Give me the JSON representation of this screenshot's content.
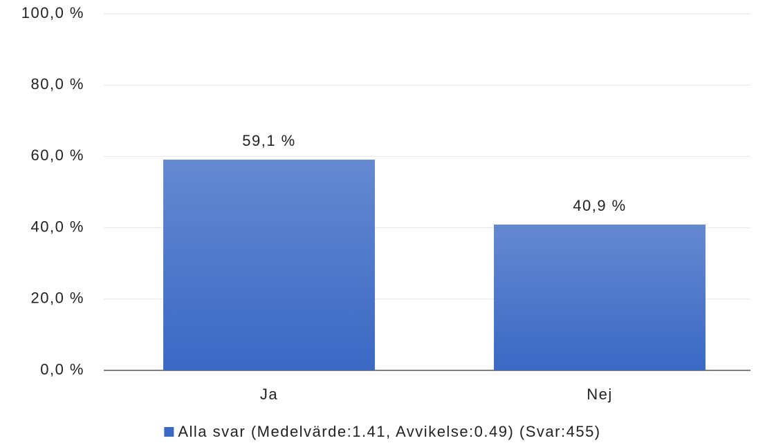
{
  "chart_data": {
    "type": "bar",
    "categories": [
      "Ja",
      "Nej"
    ],
    "series": [
      {
        "name": "Alla svar (Medelvärde:1.41, Avvikelse:0.49) (Svar:455)",
        "color": "#3a68c4",
        "values": [
          59.1,
          40.9
        ],
        "value_labels": [
          "59,1 %",
          "40,9 %"
        ]
      }
    ],
    "ylim": [
      0,
      100
    ],
    "yticks": [
      {
        "value": 0,
        "label": "0,0 %"
      },
      {
        "value": 20,
        "label": "20,0 %"
      },
      {
        "value": 40,
        "label": "40,0 %"
      },
      {
        "value": 60,
        "label": "60,0 %"
      },
      {
        "value": 80,
        "label": "80,0 %"
      },
      {
        "value": 100,
        "label": "100,0 %"
      }
    ],
    "grid": true,
    "legend": "bottom"
  }
}
